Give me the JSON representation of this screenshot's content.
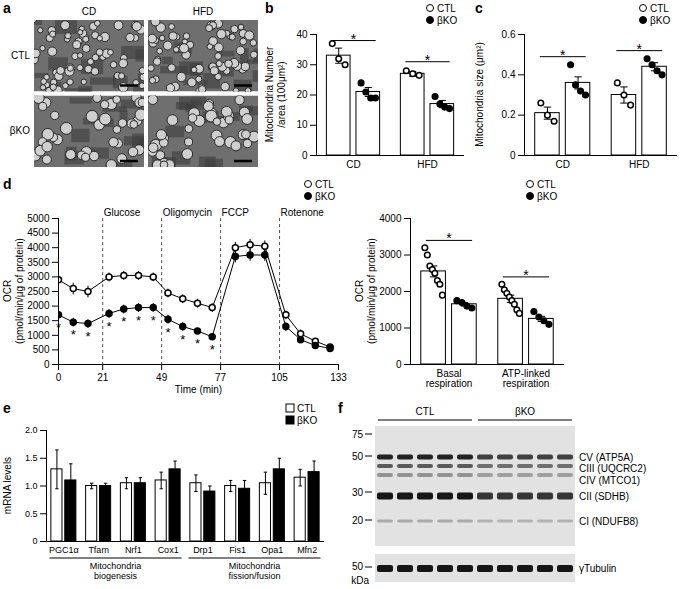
{
  "chart_data": [
    {
      "panel": "b",
      "type": "bar",
      "categories": [
        "CD",
        "HFD"
      ],
      "ylabel": "Mitochondria Number\n/area (100μm²)",
      "ylim": [
        0,
        40
      ],
      "yticks": [
        0,
        10,
        20,
        30,
        40
      ],
      "color": "#ffffff",
      "legend": "top-right",
      "series": [
        {
          "name": "CTL",
          "color": "#ffffff",
          "marker": "circle",
          "values": [
            33,
            27
          ],
          "errors": [
            2.5,
            0.8
          ],
          "points": [
            [
              37,
              32,
              30
            ],
            [
              28,
              27,
              26.5
            ]
          ]
        },
        {
          "name": "βKO",
          "color": "#000000",
          "marker": "circle",
          "values": [
            21,
            17
          ],
          "errors": [
            1.5,
            1.2
          ],
          "points": [
            [
              24,
              21,
              19,
              19
            ],
            [
              19.5,
              17,
              16,
              15.5
            ]
          ]
        }
      ],
      "annotations": [
        {
          "text": "*",
          "x": "CD",
          "y": 38
        },
        {
          "text": "*",
          "x": "HFD",
          "y": 31
        }
      ]
    },
    {
      "panel": "c",
      "type": "bar",
      "categories": [
        "CD",
        "HFD"
      ],
      "ylabel": "Mitochondria size (μm²)",
      "ylim": [
        0,
        0.6
      ],
      "yticks": [
        0,
        0.2,
        0.4,
        0.6
      ],
      "color": "#ffffff",
      "legend": "top-right",
      "series": [
        {
          "name": "CTL",
          "color": "#ffffff",
          "marker": "circle",
          "values": [
            0.21,
            0.3
          ],
          "errors": [
            0.03,
            0.04
          ],
          "points": [
            [
              0.26,
              0.2,
              0.17
            ],
            [
              0.36,
              0.3,
              0.25
            ]
          ]
        },
        {
          "name": "βKO",
          "color": "#000000",
          "marker": "circle",
          "values": [
            0.36,
            0.44
          ],
          "errors": [
            0.03,
            0.02
          ],
          "points": [
            [
              0.45,
              0.35,
              0.32,
              0.3
            ],
            [
              0.48,
              0.45,
              0.42,
              0.4
            ]
          ]
        }
      ],
      "annotations": [
        {
          "text": "*",
          "x": "CD",
          "y": 0.49
        },
        {
          "text": "*",
          "x": "HFD",
          "y": 0.52
        }
      ]
    },
    {
      "panel": "d",
      "type": "line",
      "xlabel": "Time (min)",
      "ylabel": "OCR\n(pmol/min/μg of protein)",
      "xlim": [
        0,
        133
      ],
      "xticks": [
        0,
        21,
        49,
        77,
        105,
        133
      ],
      "ylim": [
        0,
        5000
      ],
      "yticks": [
        0,
        500,
        1000,
        1500,
        2000,
        2500,
        3000,
        3500,
        4000,
        4500,
        5000
      ],
      "legend": "top-right",
      "x": [
        0,
        7,
        14,
        24,
        31,
        38,
        45,
        52,
        59,
        66,
        73,
        84,
        91,
        98,
        108,
        115,
        122,
        129
      ],
      "series": [
        {
          "name": "CTL",
          "color": "#ffffff",
          "marker": "circle",
          "values": [
            2900,
            2600,
            2500,
            3000,
            3050,
            3050,
            3000,
            2450,
            2250,
            2100,
            1950,
            4000,
            4100,
            4050,
            1700,
            1050,
            800,
            600
          ],
          "errors": [
            250,
            200,
            200,
            150,
            150,
            150,
            150,
            150,
            150,
            150,
            150,
            200,
            200,
            200,
            150,
            150,
            100,
            100
          ]
        },
        {
          "name": "βKO",
          "color": "#000000",
          "marker": "circle",
          "values": [
            1700,
            1450,
            1400,
            1750,
            1900,
            1950,
            1950,
            1550,
            1300,
            1150,
            950,
            3700,
            3750,
            3750,
            1300,
            850,
            650,
            550
          ],
          "errors": [
            200,
            150,
            150,
            150,
            150,
            150,
            150,
            150,
            150,
            100,
            100,
            200,
            200,
            200,
            150,
            100,
            100,
            100
          ]
        }
      ],
      "events": [
        {
          "text": "Glucose",
          "x": 21
        },
        {
          "text": "Oligomycin",
          "x": 49
        },
        {
          "text": "FCCP",
          "x": 77
        },
        {
          "text": "Rotenone",
          "x": 105
        }
      ],
      "annotations": [
        {
          "text": "*",
          "x": 0,
          "y": 1250
        },
        {
          "text": "*",
          "x": 7,
          "y": 1000
        },
        {
          "text": "*",
          "x": 14,
          "y": 950
        },
        {
          "text": "*",
          "x": 24,
          "y": 1300
        },
        {
          "text": "*",
          "x": 31,
          "y": 1450
        },
        {
          "text": "*",
          "x": 38,
          "y": 1500
        },
        {
          "text": "*",
          "x": 45,
          "y": 1500
        },
        {
          "text": "*",
          "x": 52,
          "y": 1100
        },
        {
          "text": "*",
          "x": 59,
          "y": 850
        },
        {
          "text": "*",
          "x": 66,
          "y": 700
        },
        {
          "text": "*",
          "x": 73,
          "y": 500
        }
      ]
    },
    {
      "type": "bar",
      "categories": [
        "Basal\nrespiration",
        "ATP-linked\nrespiration"
      ],
      "ylabel": "OCR\n(pmol/min/μg of protein)",
      "ylim": [
        0,
        4000
      ],
      "yticks": [
        0,
        1000,
        2000,
        3000,
        4000
      ],
      "color": "#ffffff",
      "legend": "top-right",
      "series": [
        {
          "name": "CTL",
          "color": "#ffffff",
          "marker": "circle",
          "values": [
            2550,
            1800
          ],
          "errors": [
            150,
            100
          ],
          "points": [
            [
              3200,
              3000,
              2700,
              2600,
              2500,
              2300,
              2200,
              1900
            ],
            [
              2200,
              2050,
              1950,
              1850,
              1750,
              1650,
              1500,
              1400
            ]
          ]
        },
        {
          "name": "βKO",
          "color": "#000000",
          "marker": "circle",
          "values": [
            1650,
            1250
          ],
          "errors": [
            50,
            70
          ],
          "points": [
            [
              1750,
              1700,
              1600,
              1550
            ],
            [
              1450,
              1300,
              1200,
              1100
            ]
          ]
        }
      ],
      "annotations": [
        {
          "text": "*",
          "x": "Basal\nrespiration",
          "y": 3400
        },
        {
          "text": "*",
          "x": "ATP-linked\nrespiration",
          "y": 2400
        }
      ]
    },
    {
      "panel": "e",
      "type": "bar",
      "categories": [
        "PGC1α",
        "Tfam",
        "Nrf1",
        "Cox1",
        "Drp1",
        "Fis1",
        "Opa1",
        "Mfn2"
      ],
      "ylabel": "mRNA levels",
      "ylim": [
        0,
        2
      ],
      "yticks": [
        0,
        0.5,
        {
          "value": 1,
          "label": "1.0"
        },
        1.5,
        {
          "value": 2,
          "label": "2.0"
        }
      ],
      "legend": "top-right",
      "series": [
        {
          "name": "CTL",
          "color": "#ffffff",
          "marker": "square",
          "values": [
            1.3,
            1.0,
            1.05,
            1.1,
            1.05,
            1.0,
            1.05,
            1.15
          ],
          "errors": [
            0.35,
            0.05,
            0.1,
            0.15,
            0.15,
            0.1,
            0.2,
            0.15
          ]
        },
        {
          "name": "βKO",
          "color": "#000000",
          "marker": "square",
          "values": [
            1.1,
            1.0,
            1.05,
            1.3,
            0.9,
            0.95,
            1.3,
            1.25
          ],
          "errors": [
            0.3,
            0.05,
            0.1,
            0.15,
            0.1,
            0.15,
            0.2,
            0.2
          ]
        }
      ],
      "groups": [
        {
          "label": "Mitochondria\nbiogenesis",
          "categories": [
            "PGC1α",
            "Tfam",
            "Nrf1",
            "Cox1"
          ]
        },
        {
          "label": "Mitochondria\nfission/fusion",
          "categories": [
            "Drp1",
            "Fis1",
            "Opa1",
            "Mfn2"
          ]
        }
      ]
    }
  ],
  "images": {
    "panel": "a",
    "columns": [
      "CD",
      "HFD"
    ],
    "rows": [
      "CTL",
      "βKO"
    ]
  },
  "blot": {
    "panel": "f",
    "groups": [
      {
        "label": "CTL",
        "lanes": 5
      },
      {
        "label": "βKO",
        "lanes": 5
      }
    ],
    "markers": [
      75,
      50,
      30,
      20
    ],
    "bands": [
      "CV (ATP5A)",
      "CIII (UQCRC2)",
      "CIV (MTCO1)",
      "CII (SDHB)",
      "CI (NDUFB8)"
    ],
    "loading": {
      "label": "γTubulin",
      "marker": 50,
      "unit": "kDa"
    }
  }
}
